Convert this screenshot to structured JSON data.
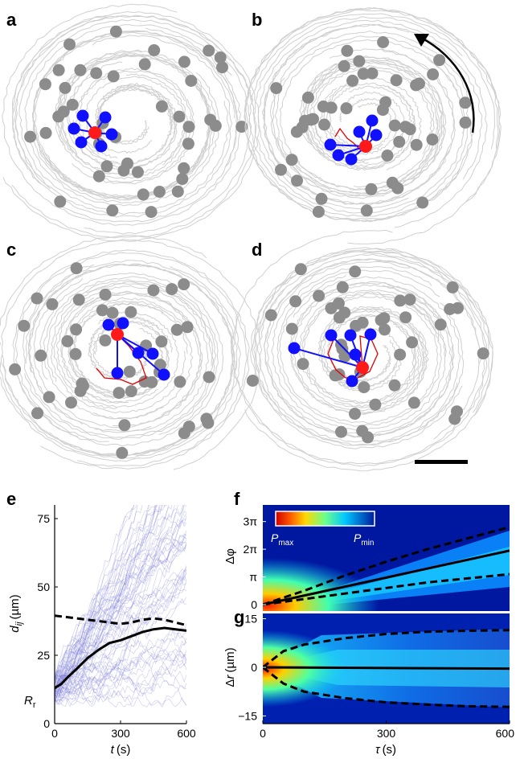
{
  "panels": {
    "a": "a",
    "b": "b",
    "c": "c",
    "d": "d",
    "e": "e",
    "f": "f",
    "g": "g"
  },
  "colors": {
    "track": "#d0d0d0",
    "cell": "#8c8c8c",
    "focal": "#ff1a1a",
    "neighbor": "#1010ff",
    "path": "#e00000",
    "thin_traces": "#7b7bd8"
  },
  "chart_data": [
    {
      "type": "line",
      "panel": "e",
      "ylabel": "d_ij (µm)",
      "ylabel_main": "d",
      "ylabel_sub": "ij",
      "ylabel_unit": "(µm)",
      "xlabel": "t (s)",
      "xlabel_main": "t",
      "xlabel_unit": "(s)",
      "xlim": [
        0,
        600
      ],
      "ylim": [
        0,
        80
      ],
      "xticks": [
        0,
        300,
        600
      ],
      "xtick_labels": [
        "0",
        "300",
        "600"
      ],
      "yticks": [
        0,
        25,
        50,
        75
      ],
      "ytick_labels": [
        "0",
        "25",
        "50",
        "75"
      ],
      "annotation": {
        "text": "R",
        "sub": "r",
        "y": 8.5
      },
      "series": [
        {
          "style": "solid",
          "x": [
            0,
            30,
            60,
            100,
            150,
            200,
            250,
            300,
            350,
            400,
            450,
            500,
            550,
            600
          ],
          "values": [
            13,
            14.5,
            17,
            20,
            24,
            27,
            29.5,
            30.5,
            32,
            33.5,
            34.5,
            35,
            34.5,
            34
          ]
        },
        {
          "style": "dashed",
          "x": [
            0,
            50,
            100,
            150,
            200,
            250,
            300,
            350,
            400,
            450,
            500,
            550,
            600
          ],
          "values": [
            39.5,
            39,
            38.5,
            38,
            37.5,
            37,
            36.5,
            37,
            38,
            38.5,
            38,
            37,
            36
          ]
        }
      ]
    },
    {
      "type": "heatmap",
      "panel": "f",
      "ylabel": "Δφ",
      "xlim": [
        0,
        600
      ],
      "ylim": [
        0,
        3.6
      ],
      "ytick_labels": [
        "0",
        "π",
        "2π",
        "3π"
      ],
      "colorbar": {
        "max_label": "P",
        "max_sub": "max",
        "min_label": "P",
        "min_sub": "min"
      },
      "series": [
        {
          "style": "solid",
          "x": [
            0,
            600
          ],
          "values": [
            0,
            1.95
          ]
        },
        {
          "style": "dashed",
          "x": [
            0,
            100,
            200,
            300,
            400,
            500,
            600
          ],
          "values": [
            0,
            0.5,
            1.05,
            1.55,
            2.0,
            2.4,
            2.8
          ]
        },
        {
          "style": "dashed",
          "x": [
            0,
            100,
            200,
            300,
            400,
            500,
            600
          ],
          "values": [
            0,
            0.2,
            0.4,
            0.6,
            0.8,
            0.95,
            1.1
          ]
        }
      ]
    },
    {
      "type": "heatmap",
      "panel": "g",
      "ylabel": "Δr (µm)",
      "ylabel_main": "Δ",
      "ylabel_var": "r",
      "ylabel_unit": "(µm)",
      "xlabel": "τ (s)",
      "xlabel_main": "τ",
      "xlabel_unit": "(s)",
      "xlim": [
        0,
        600
      ],
      "ylim": [
        -17,
        17
      ],
      "xticks": [
        0,
        300,
        600
      ],
      "xtick_labels": [
        "0",
        "300",
        "600"
      ],
      "yticks": [
        -15,
        0,
        15
      ],
      "ytick_labels": [
        "−15",
        "0",
        "15"
      ],
      "series": [
        {
          "style": "solid",
          "x": [
            0,
            600
          ],
          "values": [
            0,
            -0.4
          ]
        },
        {
          "style": "dashed",
          "x": [
            0,
            50,
            100,
            200,
            300,
            400,
            500,
            600
          ],
          "values": [
            0,
            5,
            7,
            9,
            10.3,
            11,
            11.3,
            11.5
          ]
        },
        {
          "style": "dashed",
          "x": [
            0,
            50,
            100,
            200,
            300,
            400,
            500,
            600
          ],
          "values": [
            0,
            -5,
            -7.5,
            -9.5,
            -10.8,
            -11.5,
            -12,
            -12.2
          ]
        }
      ]
    }
  ]
}
